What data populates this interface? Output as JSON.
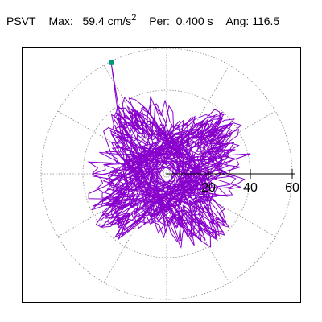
{
  "header": {
    "label": "PSVT",
    "max_label": "Max:",
    "max_value": "59.4",
    "max_unit": "cm/s",
    "max_unit_exp": "2",
    "per_label": "Per:",
    "per_value": "0.400",
    "per_unit": "s",
    "ang_label": "Ang:",
    "ang_value": "116.5"
  },
  "chart_data": {
    "type": "polar-orbit",
    "r_ticks": [
      20,
      40,
      60
    ],
    "r_tick_labels": [
      "20",
      "40",
      "60"
    ],
    "rings": [
      20,
      40,
      60
    ],
    "spoke_step_deg": 30,
    "r_max_axis": 60,
    "max_point": {
      "r": 59.4,
      "angle_deg": 116.5
    },
    "colors": {
      "trace": "#8800cc",
      "marker": "#009977",
      "grid": "#888888",
      "axis": "#000000",
      "frame": "#000000"
    }
  }
}
